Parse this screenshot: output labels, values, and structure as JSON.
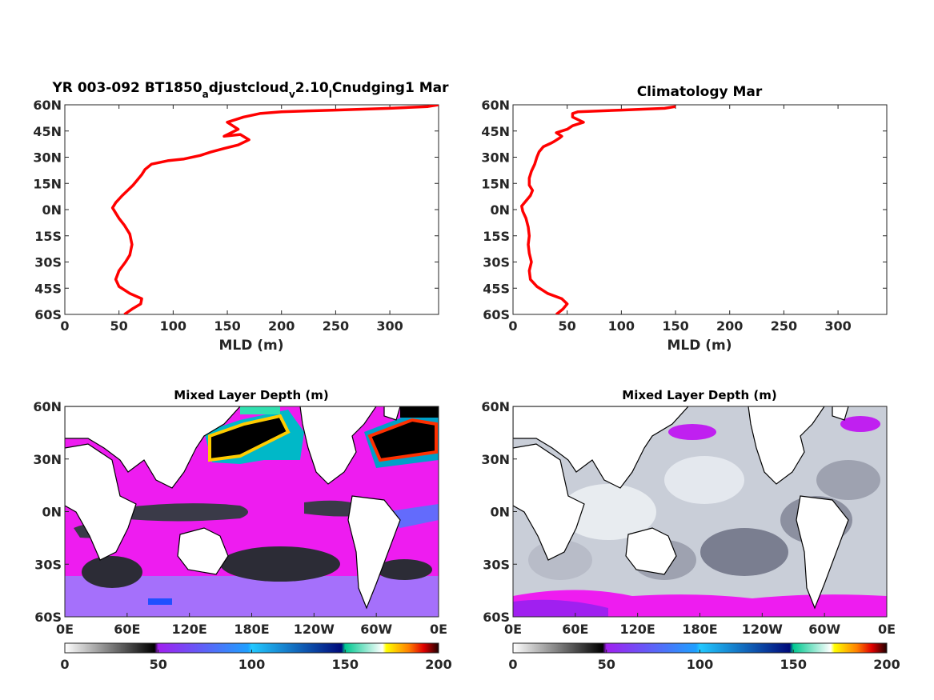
{
  "colors": {
    "profile_line": "#ff0000",
    "land": "#ffffff",
    "coast": "#000000"
  },
  "colormap": {
    "segments": [
      {
        "from": "#ffffff",
        "to": "#1a1a1a"
      },
      {
        "from": "#a020f0",
        "to": "#ff00ff"
      },
      {
        "from": "#2ec8ff",
        "to": "#000a7a"
      },
      {
        "from": "#00c890",
        "to": "#d8ffb0"
      },
      {
        "from": "#ffff00",
        "to": "#7a0000"
      }
    ]
  },
  "chart_data": [
    {
      "type": "line",
      "title_parts": {
        "p1": "YR 003-092 BT1850",
        "sub1": "a",
        "p2": "djustcloud",
        "sub2": "v",
        "p3": "2.10",
        "sub3": "l",
        "p4": "Cnudging1 Mar"
      },
      "xlabel": "MLD (m)",
      "xlim": [
        0,
        345
      ],
      "ylim": [
        -60,
        60
      ],
      "xticks": [
        "0",
        "50",
        "100",
        "150",
        "200",
        "250",
        "300"
      ],
      "yticks": [
        "60N",
        "45N",
        "30N",
        "15N",
        "0N",
        "15S",
        "30S",
        "45S",
        "60S"
      ],
      "series": [
        {
          "x": [
            55,
            62,
            70,
            71,
            60,
            50,
            47,
            50,
            56,
            60,
            62,
            60,
            55,
            50,
            46,
            44,
            47,
            53,
            58,
            63,
            67,
            71,
            74,
            80,
            95,
            110,
            125,
            135,
            147,
            160,
            170,
            162,
            147,
            160,
            155,
            150,
            165,
            180,
            200,
            250,
            300,
            335,
            345
          ],
          "y": [
            -60,
            -57,
            -54,
            -51,
            -48,
            -44,
            -40,
            -35,
            -30,
            -26,
            -20,
            -14,
            -9,
            -5,
            -1,
            1,
            4,
            8,
            11,
            14,
            17,
            20,
            23,
            26,
            28,
            29,
            31,
            33,
            35,
            37,
            40,
            43,
            42,
            46,
            48,
            50,
            53,
            55,
            56,
            57,
            58,
            59,
            60
          ]
        }
      ]
    },
    {
      "type": "line",
      "title": "Climatology Mar",
      "xlabel": "MLD (m)",
      "xlim": [
        0,
        345
      ],
      "ylim": [
        -60,
        60
      ],
      "xticks": [
        "0",
        "50",
        "100",
        "150",
        "200",
        "250",
        "300"
      ],
      "yticks": [
        "60N",
        "45N",
        "30N",
        "15N",
        "0N",
        "15S",
        "30S",
        "45S",
        "60S"
      ],
      "series": [
        {
          "x": [
            40,
            46,
            50,
            45,
            32,
            22,
            16,
            15,
            17,
            15,
            14,
            15,
            14,
            12,
            9,
            8,
            12,
            16,
            18,
            15,
            15,
            17,
            20,
            22,
            24,
            28,
            35,
            38,
            43,
            45,
            40,
            50,
            55,
            65,
            55,
            55,
            60,
            100,
            140,
            150
          ],
          "y": [
            -60,
            -57,
            -54,
            -51,
            -48,
            -44,
            -40,
            -35,
            -30,
            -25,
            -20,
            -15,
            -10,
            -5,
            -1,
            2,
            5,
            8,
            11,
            14,
            18,
            22,
            26,
            30,
            33,
            36,
            38,
            39,
            41,
            42,
            44,
            46,
            48,
            50,
            53,
            55,
            56,
            57,
            58,
            59
          ]
        }
      ]
    },
    {
      "type": "heatmap",
      "title": "Mixed Layer Depth (m)",
      "xticks": [
        "0E",
        "60E",
        "120E",
        "180E",
        "120W",
        "60W",
        "0E"
      ],
      "yticks": [
        "60N",
        "30N",
        "0N",
        "30S",
        "60S"
      ],
      "xlim": [
        0,
        360
      ],
      "ylim": [
        -60,
        60
      ],
      "colorbar": {
        "range": [
          0,
          200
        ],
        "ticks": [
          "0",
          "50",
          "100",
          "150",
          "200"
        ]
      },
      "variant": "model"
    },
    {
      "type": "heatmap",
      "title": "Mixed Layer Depth (m)",
      "xticks": [
        "0E",
        "60E",
        "120E",
        "180E",
        "120W",
        "60W",
        "0E"
      ],
      "yticks": [
        "60N",
        "30N",
        "0N",
        "30S",
        "60S"
      ],
      "xlim": [
        0,
        360
      ],
      "ylim": [
        -60,
        60
      ],
      "colorbar": {
        "range": [
          0,
          200
        ],
        "ticks": [
          "0",
          "50",
          "100",
          "150",
          "200"
        ]
      },
      "variant": "climatology"
    }
  ]
}
